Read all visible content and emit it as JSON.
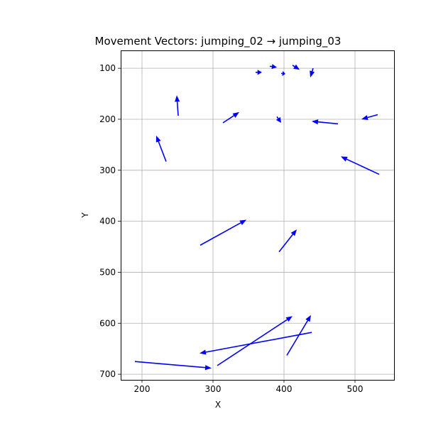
{
  "chart_data": {
    "type": "quiver",
    "title": "Movement Vectors: jumping_02 → jumping_03",
    "xlabel": "X",
    "ylabel": "Y",
    "xlim": [
      170,
      555
    ],
    "ylim": [
      711,
      65
    ],
    "y_inverted": true,
    "grid": true,
    "color": "#0000ff",
    "x_ticks": [
      200,
      300,
      400,
      500
    ],
    "y_ticks": [
      100,
      200,
      300,
      400,
      500,
      600,
      700
    ],
    "vectors": [
      {
        "x": 190,
        "y": 675,
        "dx": 108,
        "dy": 13
      },
      {
        "x": 306,
        "y": 683,
        "dx": 106,
        "dy": -97
      },
      {
        "x": 404,
        "y": 663,
        "dx": 34,
        "dy": -79
      },
      {
        "x": 439,
        "y": 618,
        "dx": -158,
        "dy": 41
      },
      {
        "x": 282,
        "y": 447,
        "dx": 65,
        "dy": -50
      },
      {
        "x": 393,
        "y": 460,
        "dx": 25,
        "dy": -44
      },
      {
        "x": 234,
        "y": 283,
        "dx": -14,
        "dy": -51
      },
      {
        "x": 534,
        "y": 308,
        "dx": -54,
        "dy": -35
      },
      {
        "x": 251,
        "y": 193,
        "dx": -2,
        "dy": -40
      },
      {
        "x": 314,
        "y": 207,
        "dx": 23,
        "dy": -21
      },
      {
        "x": 390,
        "y": 195,
        "dx": 6,
        "dy": 12
      },
      {
        "x": 476,
        "y": 209,
        "dx": -37,
        "dy": -5
      },
      {
        "x": 532,
        "y": 191,
        "dx": -23,
        "dy": 9
      },
      {
        "x": 360,
        "y": 108,
        "dx": 9,
        "dy": 0
      },
      {
        "x": 380,
        "y": 96,
        "dx": 10,
        "dy": 2
      },
      {
        "x": 396,
        "y": 110,
        "dx": 6,
        "dy": 1
      },
      {
        "x": 412,
        "y": 94,
        "dx": 10,
        "dy": 9
      },
      {
        "x": 441,
        "y": 100,
        "dx": -4,
        "dy": 18
      }
    ]
  }
}
